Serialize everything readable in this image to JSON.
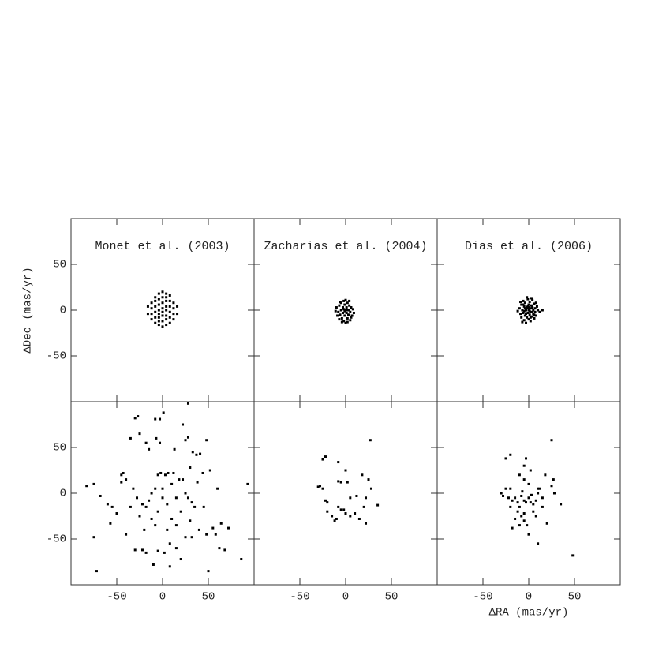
{
  "chart_data": [
    {
      "type": "scatter",
      "title": "Monet et al. (2003)",
      "ylabel": "ΔDec (mas/yr)",
      "color": "#000000",
      "xlim": [
        -100,
        100
      ],
      "ylim": [
        -100,
        100
      ],
      "xticks": [
        -50,
        0,
        50
      ],
      "yticks": [
        -50,
        0,
        50
      ],
      "xtick_labels": false,
      "ytick_labels": true,
      "x": [
        -16,
        -16,
        -12,
        -12,
        -12,
        -12,
        -8,
        -8,
        -8,
        -8,
        -8,
        -8,
        -4,
        -4,
        -4,
        -4,
        -4,
        -4,
        -4,
        -4,
        0,
        0,
        0,
        0,
        0,
        0,
        0,
        0,
        4,
        4,
        4,
        4,
        4,
        4,
        4,
        4,
        8,
        8,
        8,
        8,
        8,
        8,
        12,
        12,
        12,
        12,
        16,
        16
      ],
      "y": [
        -4,
        4,
        -10,
        -4,
        2,
        8,
        -14,
        -8,
        -2,
        4,
        10,
        14,
        -16,
        -12,
        -8,
        -4,
        0,
        6,
        12,
        18,
        -18,
        -12,
        -6,
        -2,
        2,
        8,
        14,
        20,
        -16,
        -10,
        -6,
        0,
        4,
        10,
        14,
        18,
        -14,
        -8,
        -2,
        4,
        10,
        16,
        -10,
        -4,
        2,
        8,
        -4,
        4
      ]
    },
    {
      "type": "scatter",
      "title": "Zacharias et al. (2004)",
      "color": "#000000",
      "xlim": [
        -100,
        100
      ],
      "ylim": [
        -100,
        100
      ],
      "xticks": [
        -50,
        0,
        50
      ],
      "yticks": [
        -50,
        0,
        50
      ],
      "xtick_labels": false,
      "ytick_labels": false,
      "x": [
        -10,
        -8,
        -7,
        -6,
        -5,
        -5,
        -4,
        -3,
        -3,
        -2,
        -2,
        -1,
        -1,
        0,
        0,
        1,
        1,
        2,
        2,
        3,
        3,
        4,
        5,
        5,
        6,
        7,
        8,
        9,
        -9,
        -6,
        0,
        4,
        -4,
        2,
        -7,
        -11,
        6,
        1,
        -2,
        -1
      ],
      "y": [
        3,
        -2,
        5,
        -5,
        0,
        8,
        -9,
        3,
        -3,
        10,
        -12,
        6,
        -6,
        0,
        -14,
        3,
        -3,
        8,
        -9,
        0,
        -5,
        5,
        -2,
        -11,
        3,
        -6,
        1,
        -3,
        -6,
        9,
        11,
        10,
        -13,
        -13,
        -10,
        -1,
        -8,
        0,
        1,
        -1
      ]
    },
    {
      "type": "scatter",
      "title": "Dias et al. (2006)",
      "color": "#000000",
      "xlim": [
        -100,
        100
      ],
      "ylim": [
        -100,
        100
      ],
      "xticks": [
        -50,
        0,
        50
      ],
      "yticks": [
        -50,
        0,
        50
      ],
      "xtick_labels": false,
      "ytick_labels": false,
      "x": [
        -10,
        -9,
        -8,
        -8,
        -7,
        -6,
        -6,
        -5,
        -5,
        -4,
        -4,
        -3,
        -3,
        -2,
        -2,
        -1,
        -1,
        0,
        0,
        0,
        1,
        1,
        2,
        2,
        3,
        3,
        4,
        4,
        5,
        5,
        6,
        6,
        7,
        7,
        8,
        9,
        10,
        12,
        15,
        -12,
        -9,
        -7,
        -2,
        3,
        8,
        -4,
        -6,
        2,
        -1,
        1,
        -3,
        4,
        -5,
        6,
        0
      ],
      "y": [
        2,
        -4,
        6,
        -8,
        0,
        10,
        -3,
        4,
        -11,
        -6,
        8,
        0,
        -14,
        3,
        -8,
        12,
        -3,
        6,
        0,
        -10,
        -5,
        9,
        2,
        -12,
        -2,
        5,
        -7,
        11,
        0,
        -4,
        7,
        -9,
        2,
        -2,
        -6,
        4,
        0,
        -2,
        0,
        -1,
        9,
        -13,
        14,
        13,
        8,
        2,
        6,
        -8,
        4,
        -1,
        -4,
        3,
        -1,
        -5,
        3
      ]
    },
    {
      "type": "scatter",
      "color": "#000000",
      "xlim": [
        -100,
        100
      ],
      "ylim": [
        -100,
        100
      ],
      "xticks": [
        -50,
        0,
        50
      ],
      "yticks": [
        -50,
        0,
        50
      ],
      "xtick_labels": true,
      "ytick_labels": true,
      "x": [
        -30,
        -27,
        -8,
        -3,
        1,
        -35,
        -25,
        -18,
        -15,
        -7,
        -3,
        13,
        22,
        25,
        28,
        33,
        37,
        41,
        48,
        52,
        60,
        64,
        72,
        86,
        93,
        -83,
        -75,
        -68,
        -60,
        -55,
        -50,
        -57,
        -45,
        -45,
        -43,
        -40,
        -32,
        -28,
        -22,
        -18,
        -15,
        -12,
        -8,
        -5,
        -2,
        3,
        6,
        12,
        18,
        22,
        25,
        28,
        32,
        35,
        45,
        40,
        48,
        55,
        58,
        62,
        -75,
        -72,
        -30,
        -22,
        -18,
        -10,
        -5,
        8,
        15,
        20,
        25,
        32,
        68,
        50,
        -40,
        -25,
        -12,
        -5,
        0,
        5,
        10,
        15,
        20,
        30,
        -35,
        -20,
        5,
        0,
        10,
        15,
        2,
        -8,
        30,
        38,
        44,
        8,
        28
      ],
      "y": [
        82,
        84,
        81,
        81,
        88,
        60,
        65,
        55,
        48,
        60,
        55,
        48,
        75,
        58,
        61,
        45,
        42,
        43,
        58,
        25,
        5,
        -33,
        -38,
        -72,
        10,
        8,
        10,
        -3,
        -12,
        -15,
        -22,
        -33,
        12,
        20,
        22,
        15,
        5,
        -5,
        -12,
        -15,
        -8,
        0,
        5,
        20,
        22,
        20,
        22,
        22,
        15,
        15,
        0,
        -5,
        -10,
        -15,
        -15,
        -40,
        -45,
        -38,
        -45,
        -60,
        -48,
        -85,
        -62,
        -62,
        -65,
        -78,
        -63,
        -55,
        -60,
        -72,
        -48,
        -48,
        -62,
        -85,
        -45,
        -25,
        -28,
        -20,
        -5,
        -12,
        -28,
        -35,
        -20,
        -30,
        -15,
        -40,
        -40,
        5,
        10,
        -5,
        -65,
        -35,
        28,
        12,
        22,
        -80,
        98
      ]
    },
    {
      "type": "scatter",
      "color": "#000000",
      "xlim": [
        -100,
        100
      ],
      "ylim": [
        -100,
        100
      ],
      "xticks": [
        -50,
        0,
        50
      ],
      "yticks": [
        -50,
        0,
        50
      ],
      "xtick_labels": true,
      "ytick_labels": false,
      "x": [
        -22,
        -25,
        -8,
        0,
        -8,
        -5,
        2,
        27,
        18,
        25,
        28,
        22,
        20,
        35,
        -28,
        -25,
        -22,
        -20,
        -15,
        -12,
        -10,
        -8,
        -5,
        -2,
        0,
        5,
        10,
        15,
        22,
        -30,
        12,
        -20,
        5
      ],
      "y": [
        40,
        37,
        34,
        25,
        13,
        12,
        12,
        58,
        20,
        15,
        5,
        -5,
        -15,
        -13,
        8,
        5,
        -8,
        -20,
        -25,
        -30,
        -28,
        -15,
        -18,
        -18,
        -22,
        -25,
        -22,
        -28,
        -33,
        7,
        -3,
        -10,
        -5
      ]
    },
    {
      "type": "scatter",
      "xlabel": "ΔRA (mas/yr)",
      "color": "#000000",
      "xlim": [
        -100,
        100
      ],
      "ylim": [
        -100,
        100
      ],
      "xticks": [
        -50,
        0,
        50
      ],
      "yticks": [
        -50,
        0,
        50
      ],
      "xtick_labels": true,
      "ytick_labels": false,
      "x": [
        -25,
        -20,
        -3,
        -5,
        2,
        -10,
        -5,
        0,
        10,
        18,
        25,
        27,
        28,
        25,
        48,
        35,
        20,
        10,
        -18,
        -30,
        -25,
        -22,
        -18,
        -15,
        -12,
        -10,
        -8,
        -5,
        -3,
        0,
        3,
        5,
        8,
        10,
        12,
        15,
        -12,
        -8,
        -5,
        -2,
        0,
        -15,
        -10,
        -20,
        5,
        8,
        15,
        2,
        -7,
        -28,
        -20,
        -5
      ],
      "y": [
        38,
        42,
        38,
        30,
        25,
        20,
        15,
        10,
        5,
        20,
        8,
        15,
        0,
        58,
        -68,
        -12,
        -33,
        -55,
        -38,
        0,
        5,
        -5,
        -8,
        -5,
        -10,
        -15,
        -3,
        -8,
        -10,
        -5,
        -2,
        -12,
        -8,
        0,
        5,
        -5,
        -20,
        -25,
        -30,
        -35,
        -45,
        -28,
        -35,
        -15,
        -20,
        -25,
        -15,
        -10,
        2,
        -3,
        5,
        -22
      ]
    }
  ]
}
